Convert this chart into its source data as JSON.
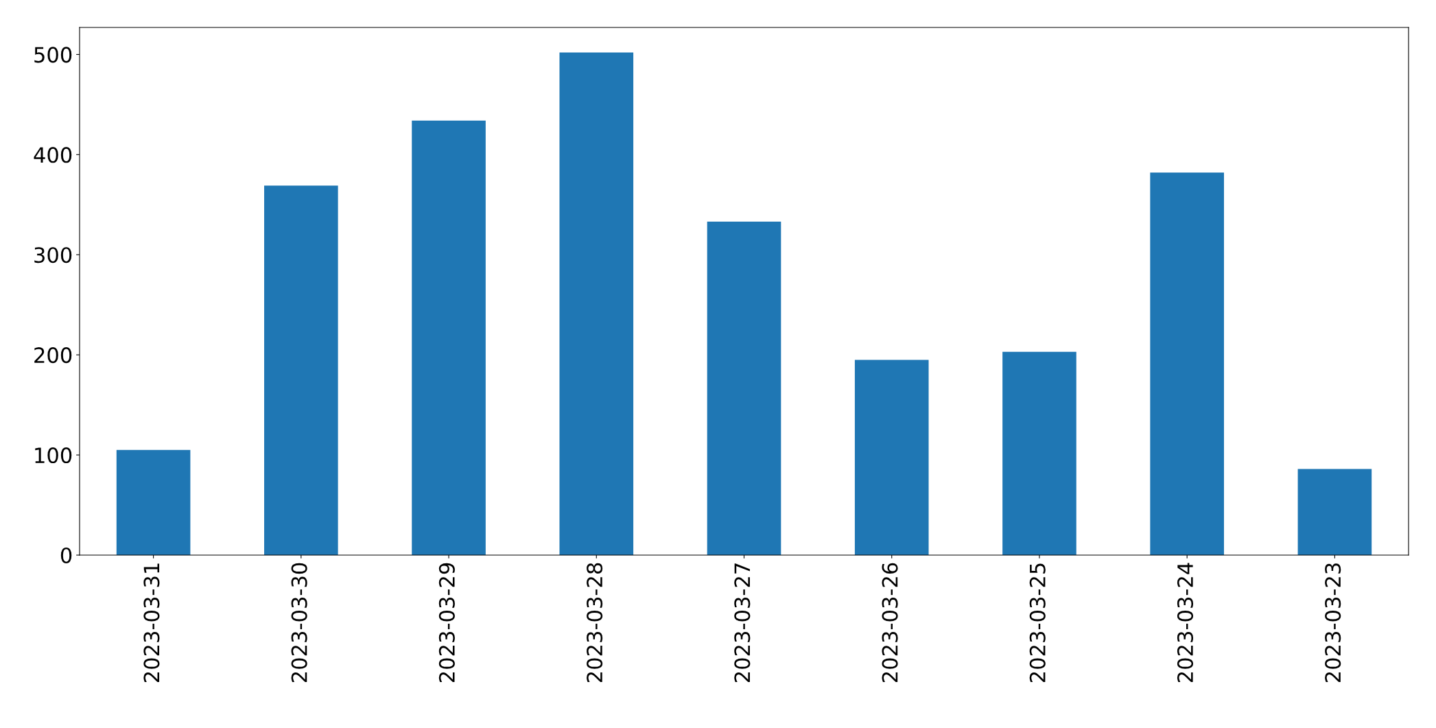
{
  "chart_data": {
    "type": "bar",
    "categories": [
      "2023-03-31",
      "2023-03-30",
      "2023-03-29",
      "2023-03-28",
      "2023-03-27",
      "2023-03-26",
      "2023-03-25",
      "2023-03-24",
      "2023-03-23"
    ],
    "values": [
      105,
      369,
      434,
      502,
      333,
      195,
      203,
      382,
      86
    ],
    "color": "#1f77b4",
    "ylim": [
      0,
      527
    ],
    "yticks": [
      0,
      100,
      200,
      300,
      400,
      500
    ],
    "grid": false
  }
}
